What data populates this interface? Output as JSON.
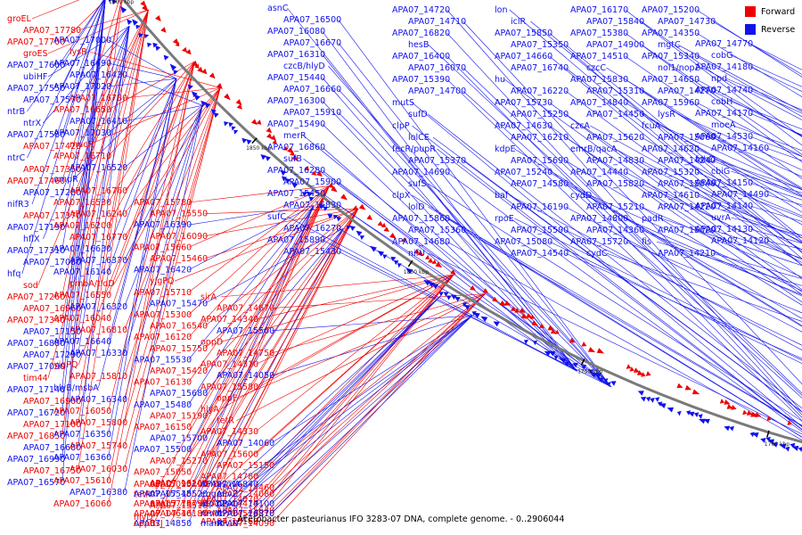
{
  "caption": "Acetobacter pasteurianus IFO 3283-07 DNA, complete genome. - 0..2906044",
  "legend": {
    "forward_label": "Forward",
    "reverse_label": "Reverse",
    "forward_color": "#ee0000",
    "reverse_color": "#1111ee"
  },
  "backbone_color": "#7a7a7a",
  "ticks": [
    "1900 kbp",
    "1850 kbp",
    "1800 kbp",
    "1750 kbp",
    "1700 kbp",
    "1650 kbp",
    "1600 kbp",
    "1550 kbp",
    "1500 kbp"
  ],
  "labels": [
    {
      "t": "groEL",
      "s": "F"
    },
    {
      "t": "APA07_17780",
      "s": "F"
    },
    {
      "t": "APA07_17700",
      "s": "F"
    },
    {
      "t": "groES",
      "s": "F"
    },
    {
      "t": "APA07_17600",
      "s": "R"
    },
    {
      "t": "ubiHF",
      "s": "R"
    },
    {
      "t": "APA07_17550",
      "s": "R"
    },
    {
      "t": "APA07_17570",
      "s": "R"
    },
    {
      "t": "ntrB",
      "s": "R"
    },
    {
      "t": "ntrX",
      "s": "R"
    },
    {
      "t": "APA07_17580",
      "s": "R"
    },
    {
      "t": "APA07_17420",
      "s": "F"
    },
    {
      "t": "ntrC",
      "s": "R"
    },
    {
      "t": "APA07_17350",
      "s": "F"
    },
    {
      "t": "APA07_17460",
      "s": "F"
    },
    {
      "t": "APA07_17280",
      "s": "R"
    },
    {
      "t": "nifR3",
      "s": "R"
    },
    {
      "t": "APA07_17370",
      "s": "F"
    },
    {
      "t": "APA07_17190",
      "s": "R"
    },
    {
      "t": "hflX",
      "s": "R"
    },
    {
      "t": "APA07_17310",
      "s": "R"
    },
    {
      "t": "APA07_17080",
      "s": "R"
    },
    {
      "t": "hfq",
      "s": "R"
    },
    {
      "t": "sod",
      "s": "F"
    },
    {
      "t": "APA07_17260",
      "s": "F"
    },
    {
      "t": "APA07_16960",
      "s": "F"
    },
    {
      "t": "APA07_17340",
      "s": "F"
    },
    {
      "t": "APA07_17150",
      "s": "R"
    },
    {
      "t": "APA07_16880",
      "s": "R"
    },
    {
      "t": "APA07_17290",
      "s": "R"
    },
    {
      "t": "APA07_17090",
      "s": "R"
    },
    {
      "t": "tim44",
      "s": "F"
    },
    {
      "t": "APA07_17140",
      "s": "R"
    },
    {
      "t": "APA07_16900",
      "s": "F"
    },
    {
      "t": "APA07_16720",
      "s": "R"
    },
    {
      "t": "APA07_17100",
      "s": "F"
    },
    {
      "t": "APA07_16850",
      "s": "F"
    },
    {
      "t": "APA07_16680",
      "s": "R"
    },
    {
      "t": "APA07_16990",
      "s": "R"
    },
    {
      "t": "APA07_16750",
      "s": "F"
    },
    {
      "t": "APA07_16570",
      "s": "R"
    },
    {
      "t": "APA07_17000",
      "s": "R"
    },
    {
      "t": "lysR",
      "s": "F"
    },
    {
      "t": "APA07_16690",
      "s": "R"
    },
    {
      "t": "APA07_16430",
      "s": "R"
    },
    {
      "t": "APA07_17020",
      "s": "R"
    },
    {
      "t": "APA07_16780",
      "s": "F"
    },
    {
      "t": "APA07_16650",
      "s": "F"
    },
    {
      "t": "APA07_16410",
      "s": "R"
    },
    {
      "t": "APA07_17030",
      "s": "R"
    },
    {
      "t": "mucR",
      "s": "F"
    },
    {
      "t": "APA07_16710",
      "s": "F"
    },
    {
      "t": "APA07_16520",
      "s": "R"
    },
    {
      "t": "ompR",
      "s": "R"
    },
    {
      "t": "APA07_16760",
      "s": "F"
    },
    {
      "t": "APA07_16530",
      "s": "F"
    },
    {
      "t": "APA07_16240",
      "s": "F"
    },
    {
      "t": "APA07_16200",
      "s": "F"
    },
    {
      "t": "APA07_16770",
      "s": "F"
    },
    {
      "t": "APA07_16630",
      "s": "R"
    },
    {
      "t": "APA07_16370",
      "s": "R"
    },
    {
      "t": "APA07_16140",
      "s": "R"
    },
    {
      "t": "pmbA/tldD",
      "s": "F"
    },
    {
      "t": "APA07_16550",
      "s": "F"
    },
    {
      "t": "APA07_16320",
      "s": "R"
    },
    {
      "t": "APA07_16040",
      "s": "F"
    },
    {
      "t": "APA07_16810",
      "s": "F"
    },
    {
      "t": "APA07_16640",
      "s": "R"
    },
    {
      "t": "APA07_16330",
      "s": "R"
    },
    {
      "t": "yjgPQ",
      "s": "F"
    },
    {
      "t": "APA07_15810",
      "s": "F"
    },
    {
      "t": "hlyB/msbA",
      "s": "R"
    },
    {
      "t": "APA07_16340",
      "s": "R"
    },
    {
      "t": "APA07_16050",
      "s": "F"
    },
    {
      "t": "APA07_15800",
      "s": "F"
    },
    {
      "t": "APA07_16350",
      "s": "R"
    },
    {
      "t": "APA07_15740",
      "s": "F"
    },
    {
      "t": "APA07_16360",
      "s": "R"
    },
    {
      "t": "APA07_16030",
      "s": "F"
    },
    {
      "t": "APA07_15610",
      "s": "F"
    },
    {
      "t": "APA07_16380",
      "s": "R"
    },
    {
      "t": "APA07_16060",
      "s": "F"
    },
    {
      "t": "APA07_15780",
      "s": "F"
    },
    {
      "t": "APA07_15550",
      "s": "F"
    },
    {
      "t": "APA07_16390",
      "s": "R"
    },
    {
      "t": "APA07_16090",
      "s": "F"
    },
    {
      "t": "APA07_15660",
      "s": "F"
    },
    {
      "t": "APA07_15460",
      "s": "F"
    },
    {
      "t": "APA07_16420",
      "s": "R"
    },
    {
      "t": "yjgPQ",
      "s": "F"
    },
    {
      "t": "APA07_15710",
      "s": "F"
    },
    {
      "t": "APA07_15470",
      "s": "R"
    },
    {
      "t": "APA07_15300",
      "s": "F"
    },
    {
      "t": "APA07_16540",
      "s": "F"
    },
    {
      "t": "APA07_16120",
      "s": "F"
    },
    {
      "t": "APA07_15750",
      "s": "F"
    },
    {
      "t": "APA07_15530",
      "s": "R"
    },
    {
      "t": "APA07_15420",
      "s": "F"
    },
    {
      "t": "APA07_16130",
      "s": "F"
    },
    {
      "t": "APA07_15680",
      "s": "R"
    },
    {
      "t": "APA07_15480",
      "s": "R"
    },
    {
      "t": "APA07_15190",
      "s": "F"
    },
    {
      "t": "APA07_16150",
      "s": "F"
    },
    {
      "t": "APA07_15700",
      "s": "R"
    },
    {
      "t": "APA07_15500",
      "s": "R"
    },
    {
      "t": "APA07_15270",
      "s": "F"
    },
    {
      "t": "APA07_15050",
      "s": "F"
    },
    {
      "t": "APA07_16160",
      "s": "F"
    },
    {
      "t": "tetR",
      "s": "F"
    },
    {
      "t": "APA07_15510",
      "s": "F"
    },
    {
      "t": "hlyD",
      "s": "F"
    },
    {
      "t": "oppC",
      "s": "F"
    },
    {
      "t": "APA07_14850",
      "s": "R"
    },
    {
      "t": "APA07_16180",
      "s": "F"
    },
    {
      "t": "APA07_15770",
      "s": "F"
    },
    {
      "t": "APA07_15520",
      "s": "R"
    },
    {
      "t": "APA07_15090",
      "s": "F"
    },
    {
      "t": "ftsJ",
      "s": "F"
    },
    {
      "t": "APA07_14640",
      "s": "F"
    },
    {
      "t": "APA07_15790",
      "s": "F"
    },
    {
      "t": "APA07_15540",
      "s": "R"
    },
    {
      "t": "APA07_15290",
      "s": "F"
    },
    {
      "t": "oppB",
      "s": "F"
    },
    {
      "t": "sirA",
      "s": "F"
    },
    {
      "t": "APA07_14670",
      "s": "F"
    },
    {
      "t": "APA07_14340",
      "s": "F"
    },
    {
      "t": "APA07_15560",
      "s": "R"
    },
    {
      "t": "oppD",
      "s": "F"
    },
    {
      "t": "APA07_14750",
      "s": "F"
    },
    {
      "t": "APA07_14310",
      "s": "F"
    },
    {
      "t": "APA07_14050",
      "s": "R"
    },
    {
      "t": "APA07_15580",
      "s": "F"
    },
    {
      "t": "oppF",
      "s": "F"
    },
    {
      "t": "hlyA",
      "s": "F"
    },
    {
      "t": "tetR",
      "s": "F"
    },
    {
      "t": "APA07_14330",
      "s": "F"
    },
    {
      "t": "APA07_14060",
      "s": "R"
    },
    {
      "t": "APA07_15600",
      "s": "F"
    },
    {
      "t": "APA07_15150",
      "s": "F"
    },
    {
      "t": "APA07_14780",
      "s": "F"
    },
    {
      "t": "APA07_14460",
      "s": "F"
    },
    {
      "t": "APA07_14070",
      "s": "F"
    },
    {
      "t": "APA07_15630",
      "s": "F"
    },
    {
      "t": "APA07_15160",
      "s": "F"
    },
    {
      "t": "APA07_14810",
      "s": "F"
    },
    {
      "t": "APA07_14470",
      "s": "F"
    },
    {
      "t": "APA07_14080",
      "s": "F"
    },
    {
      "t": "cbiD",
      "s": "F"
    },
    {
      "t": "APA07_14090",
      "s": "F"
    },
    {
      "t": "APA07_14520",
      "s": "F"
    },
    {
      "t": "APA07_14100",
      "s": "R"
    },
    {
      "t": "engA",
      "s": "R"
    },
    {
      "t": "asmA",
      "s": "R"
    },
    {
      "t": "marR",
      "s": "R"
    },
    {
      "t": "APA07_16870",
      "s": "R"
    },
    {
      "t": "atp12",
      "s": "R"
    },
    {
      "t": "envZ",
      "s": "R"
    },
    {
      "t": "APA07_16840",
      "s": "R"
    },
    {
      "t": "mviN",
      "s": "R"
    },
    {
      "t": "rimM",
      "s": "R"
    },
    {
      "t": "plsX",
      "s": "R"
    },
    {
      "t": "asnC",
      "s": "R"
    },
    {
      "t": "APA07_16500",
      "s": "R"
    },
    {
      "t": "APA07_16080",
      "s": "R"
    },
    {
      "t": "APA07_16670",
      "s": "R"
    },
    {
      "t": "APA07_16310",
      "s": "R"
    },
    {
      "t": "czcB/hlyD",
      "s": "R"
    },
    {
      "t": "APA07_15440",
      "s": "R"
    },
    {
      "t": "APA07_16660",
      "s": "R"
    },
    {
      "t": "APA07_16300",
      "s": "R"
    },
    {
      "t": "APA07_15910",
      "s": "R"
    },
    {
      "t": "APA07_15490",
      "s": "R"
    },
    {
      "t": "merR",
      "s": "R"
    },
    {
      "t": "APA07_16860",
      "s": "R"
    },
    {
      "t": "sufB",
      "s": "R"
    },
    {
      "t": "APA07_16280",
      "s": "R"
    },
    {
      "t": "APA07_15900",
      "s": "R"
    },
    {
      "t": "APA07_15450",
      "s": "R"
    },
    {
      "t": "APA07_16830",
      "s": "R"
    },
    {
      "t": "sufC",
      "s": "R"
    },
    {
      "t": "APA07_16270",
      "s": "R"
    },
    {
      "t": "APA07_15890",
      "s": "R"
    },
    {
      "t": "APA07_15430",
      "s": "R"
    },
    {
      "t": "APA07_14720",
      "s": "R"
    },
    {
      "t": "APA07_14710",
      "s": "R"
    },
    {
      "t": "APA07_16820",
      "s": "R"
    },
    {
      "t": "hesB",
      "s": "R"
    },
    {
      "t": "APA07_16400",
      "s": "R"
    },
    {
      "t": "APA07_16070",
      "s": "R"
    },
    {
      "t": "APA07_15390",
      "s": "R"
    },
    {
      "t": "APA07_14700",
      "s": "R"
    },
    {
      "t": "mutS",
      "s": "R"
    },
    {
      "t": "sufD",
      "s": "R"
    },
    {
      "t": "clpP",
      "s": "R"
    },
    {
      "t": "lolCE",
      "s": "R"
    },
    {
      "t": "fecR/pupR",
      "s": "R"
    },
    {
      "t": "APA07_15370",
      "s": "R"
    },
    {
      "t": "APA07_14690",
      "s": "R"
    },
    {
      "t": "sufS",
      "s": "R"
    },
    {
      "t": "clpX",
      "s": "R"
    },
    {
      "t": "lolD",
      "s": "R"
    },
    {
      "t": "APA07_15860",
      "s": "R"
    },
    {
      "t": "APA07_15360",
      "s": "R"
    },
    {
      "t": "APA07_14680",
      "s": "R"
    },
    {
      "t": "nifU",
      "s": "R"
    },
    {
      "t": "lon",
      "s": "R"
    },
    {
      "t": "iclR",
      "s": "R"
    },
    {
      "t": "APA07_15850",
      "s": "R"
    },
    {
      "t": "APA07_15350",
      "s": "R"
    },
    {
      "t": "APA07_14660",
      "s": "R"
    },
    {
      "t": "APA07_16740",
      "s": "R"
    },
    {
      "t": "hu",
      "s": "R"
    },
    {
      "t": "APA07_16220",
      "s": "R"
    },
    {
      "t": "APA07_15730",
      "s": "R"
    },
    {
      "t": "APA07_15250",
      "s": "R"
    },
    {
      "t": "APA07_14630",
      "s": "R"
    },
    {
      "t": "APA07_16210",
      "s": "R"
    },
    {
      "t": "kdpE",
      "s": "R"
    },
    {
      "t": "APA07_15690",
      "s": "R"
    },
    {
      "t": "APA07_15240",
      "s": "R"
    },
    {
      "t": "APA07_14580",
      "s": "R"
    },
    {
      "t": "baf",
      "s": "R"
    },
    {
      "t": "APA07_16190",
      "s": "R"
    },
    {
      "t": "rpoE",
      "s": "R"
    },
    {
      "t": "APA07_15590",
      "s": "R"
    },
    {
      "t": "APA07_15080",
      "s": "R"
    },
    {
      "t": "APA07_14540",
      "s": "R"
    },
    {
      "t": "APA07_16170",
      "s": "R"
    },
    {
      "t": "APA07_15840",
      "s": "R"
    },
    {
      "t": "APA07_15380",
      "s": "R"
    },
    {
      "t": "APA07_14900",
      "s": "R"
    },
    {
      "t": "APA07_14510",
      "s": "R"
    },
    {
      "t": "czcC",
      "s": "R"
    },
    {
      "t": "APA07_15830",
      "s": "R"
    },
    {
      "t": "APA07_15310",
      "s": "R"
    },
    {
      "t": "APA07_14840",
      "s": "R"
    },
    {
      "t": "APA07_14450",
      "s": "R"
    },
    {
      "t": "czcA",
      "s": "R"
    },
    {
      "t": "APA07_15620",
      "s": "R"
    },
    {
      "t": "emrB/qacA",
      "s": "R"
    },
    {
      "t": "APA07_14830",
      "s": "R"
    },
    {
      "t": "APA07_14440",
      "s": "R"
    },
    {
      "t": "APA07_15820",
      "s": "R"
    },
    {
      "t": "cydD",
      "s": "R"
    },
    {
      "t": "APA07_15210",
      "s": "R"
    },
    {
      "t": "APA07_14800",
      "s": "R"
    },
    {
      "t": "APA07_14360",
      "s": "R"
    },
    {
      "t": "APA07_15720",
      "s": "R"
    },
    {
      "t": "cydC",
      "s": "R"
    },
    {
      "t": "APA07_15200",
      "s": "R"
    },
    {
      "t": "APA07_14730",
      "s": "R"
    },
    {
      "t": "APA07_14350",
      "s": "R"
    },
    {
      "t": "mgtC",
      "s": "R"
    },
    {
      "t": "APA07_15340",
      "s": "R"
    },
    {
      "t": "nol1/nop2",
      "s": "R"
    },
    {
      "t": "APA07_14650",
      "s": "R"
    },
    {
      "t": "APA07_14270",
      "s": "R"
    },
    {
      "t": "APA07_15960",
      "s": "R"
    },
    {
      "t": "lysR",
      "s": "R"
    },
    {
      "t": "fcuA",
      "s": "R"
    },
    {
      "t": "APA07_15060",
      "s": "R"
    },
    {
      "t": "APA07_14620",
      "s": "R"
    },
    {
      "t": "APA07_14240",
      "s": "R"
    },
    {
      "t": "APA07_15320",
      "s": "R"
    },
    {
      "t": "APA07_15040",
      "s": "R"
    },
    {
      "t": "APA07_14610",
      "s": "R"
    },
    {
      "t": "APA07_14220",
      "s": "R"
    },
    {
      "t": "padR",
      "s": "R"
    },
    {
      "t": "APA07_15020",
      "s": "R"
    },
    {
      "t": "fis",
      "s": "R"
    },
    {
      "t": "APA07_14210",
      "s": "R"
    },
    {
      "t": "APA07_14770",
      "s": "R"
    },
    {
      "t": "cobG",
      "s": "R"
    },
    {
      "t": "APA07_14180",
      "s": "R"
    },
    {
      "t": "npd",
      "s": "R"
    },
    {
      "t": "APA07_14740",
      "s": "R"
    },
    {
      "t": "cobH",
      "s": "R"
    },
    {
      "t": "APA07_14170",
      "s": "R"
    },
    {
      "t": "moeA",
      "s": "R"
    },
    {
      "t": "APA07_14530",
      "s": "R"
    },
    {
      "t": "APA07_14160",
      "s": "R"
    },
    {
      "t": "fdhD",
      "s": "R"
    },
    {
      "t": "cbiG",
      "s": "R"
    },
    {
      "t": "APA07_14150",
      "s": "R"
    },
    {
      "t": "APA07_14490",
      "s": "R"
    },
    {
      "t": "APA07_14140",
      "s": "R"
    },
    {
      "t": "uvrA",
      "s": "R"
    },
    {
      "t": "APA07_14130",
      "s": "R"
    },
    {
      "t": "APA07_14120",
      "s": "R"
    }
  ]
}
